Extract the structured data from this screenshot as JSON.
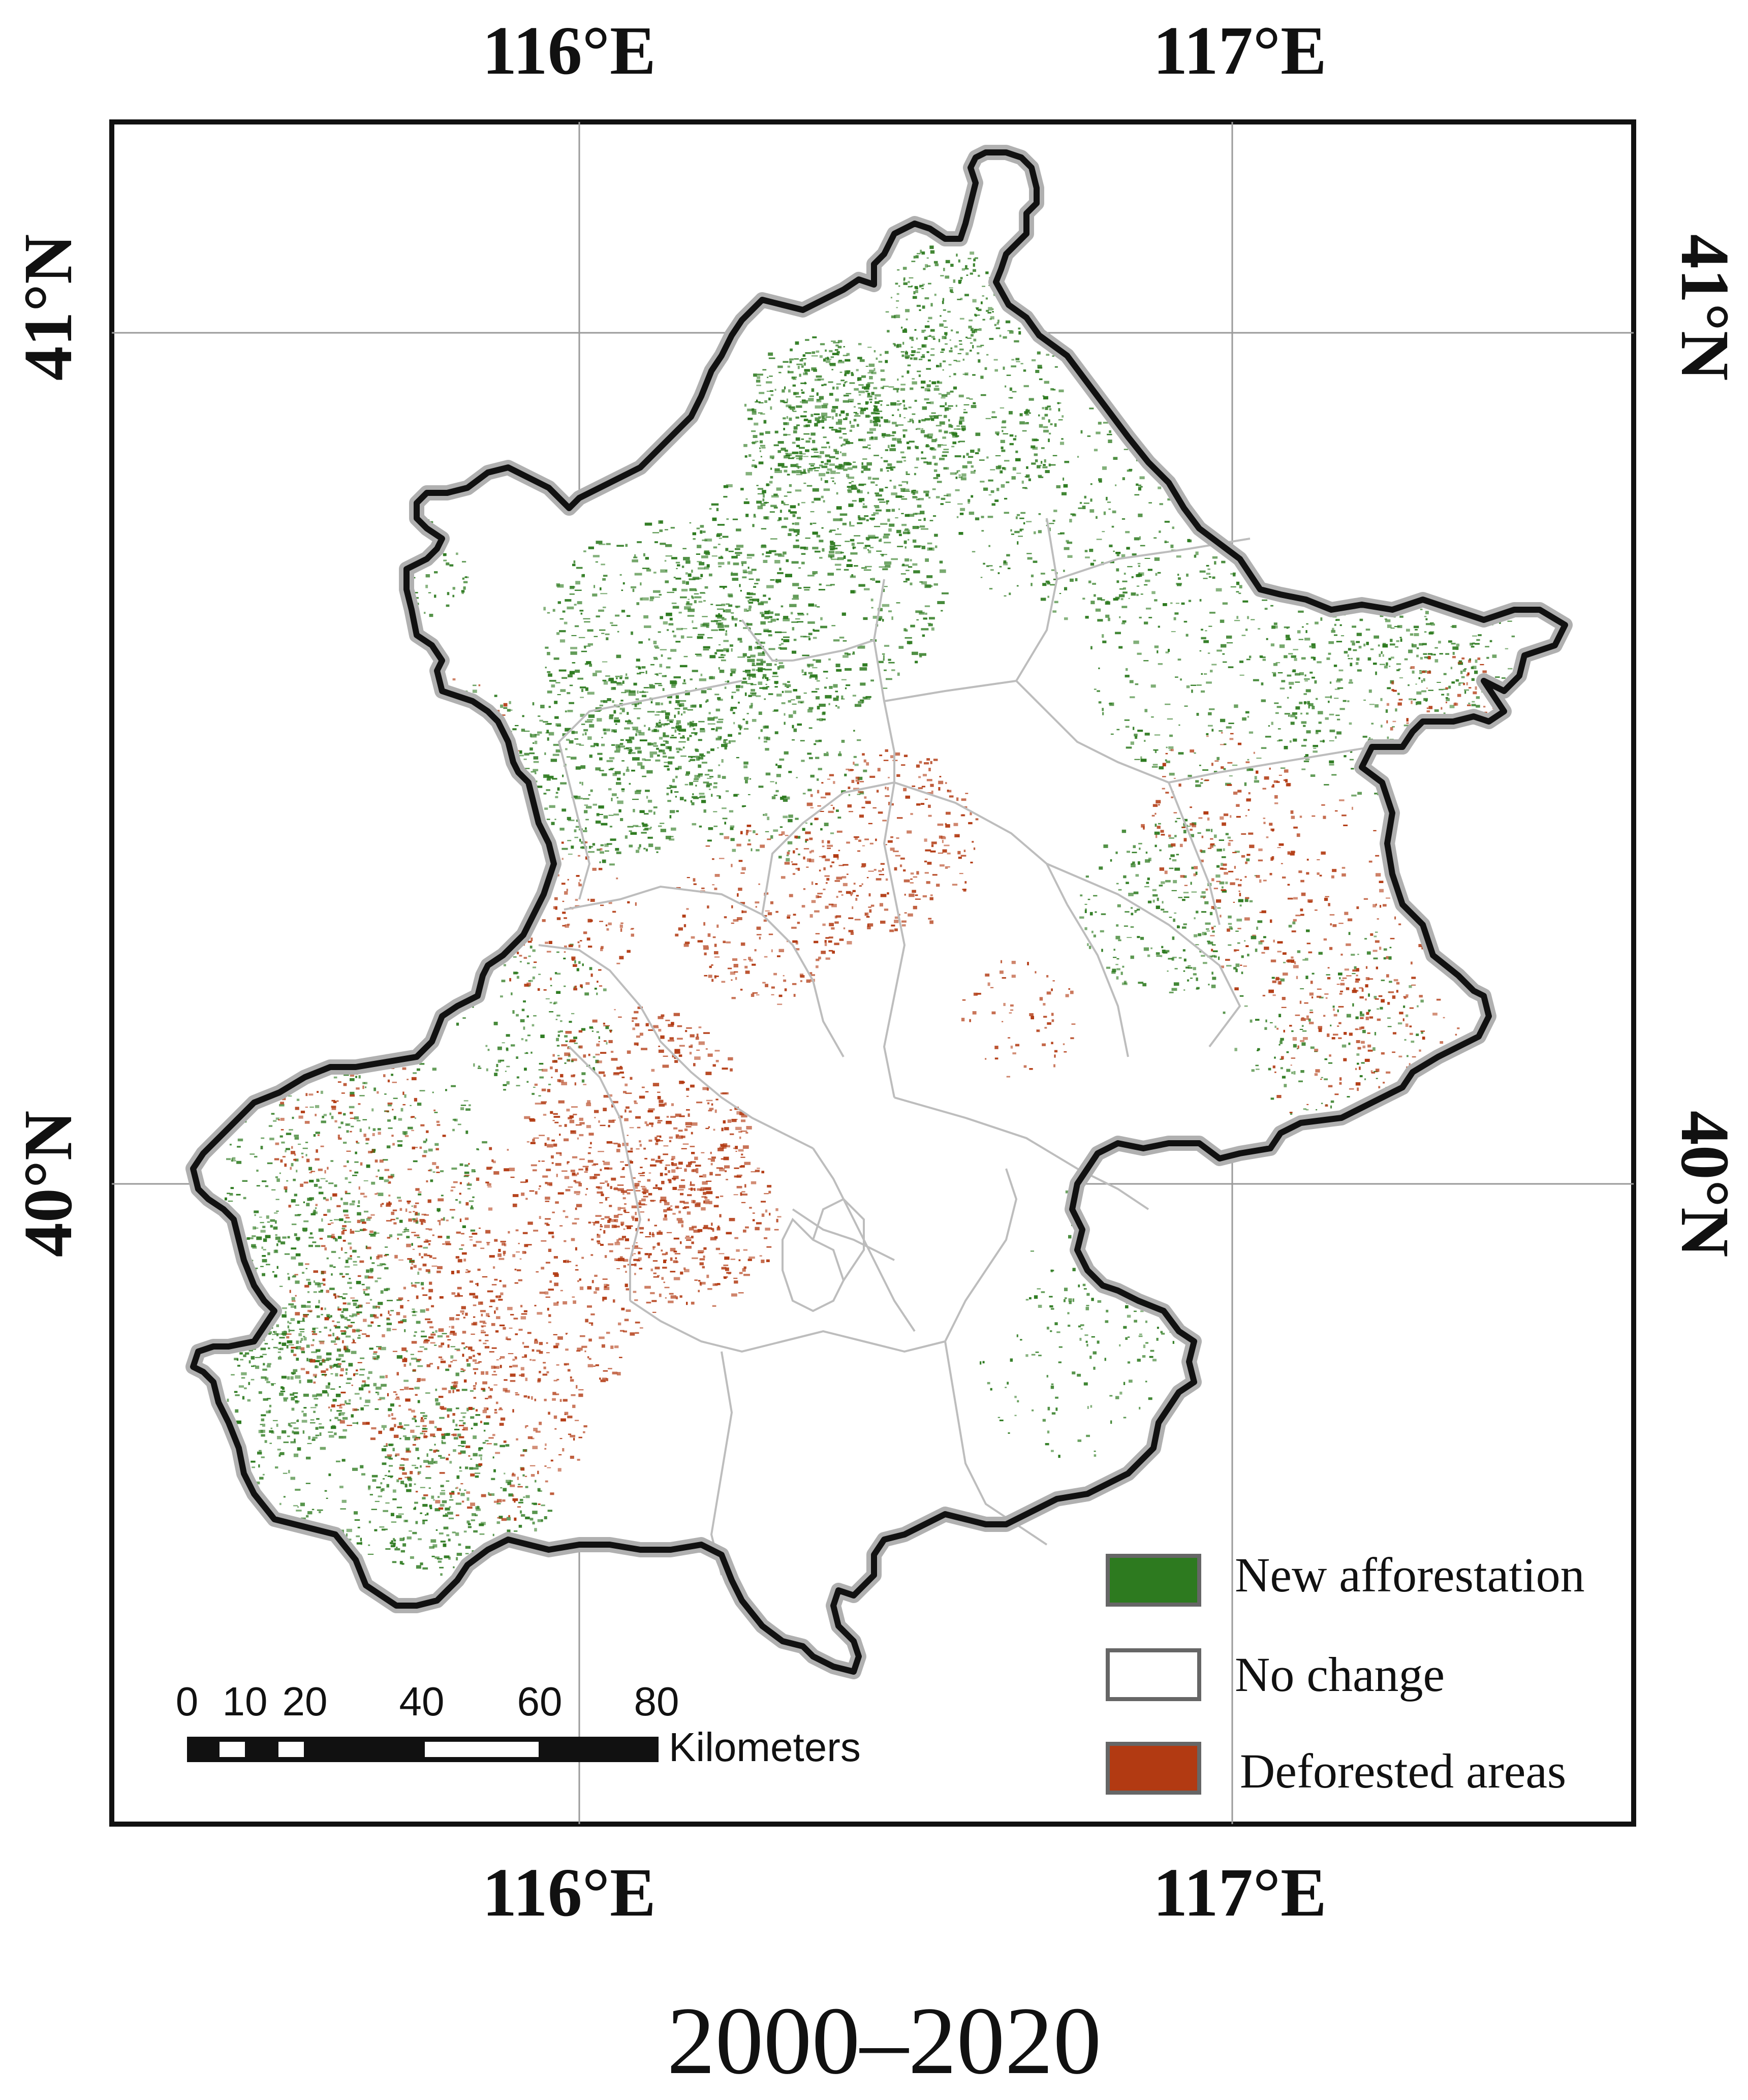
{
  "map": {
    "top_labels": [
      "116°E",
      "117°E"
    ],
    "bottom_labels": [
      "116°E",
      "117°E"
    ],
    "left_labels": [
      "41°N",
      "40°N"
    ],
    "right_labels": [
      "41°N",
      "40°N"
    ]
  },
  "legend": {
    "items": [
      {
        "label": "New afforestation",
        "color": "#2d7a1f"
      },
      {
        "label": "No change",
        "color": "#ffffff"
      },
      {
        "label": "Deforested areas",
        "color": "#b23a12"
      }
    ]
  },
  "scale_bar": {
    "ticks": [
      "0",
      "10",
      "20",
      "40",
      "60",
      "80"
    ],
    "unit": "Kilometers"
  },
  "caption": "2000–2020",
  "colors": {
    "afforestation": "#2d7a1f",
    "deforestation": "#b23a12",
    "boundary": "#111111",
    "boundary_halo": "#b0b0b0",
    "district_lines": "#bdbdbd",
    "graticule": "#9a9a9a"
  }
}
